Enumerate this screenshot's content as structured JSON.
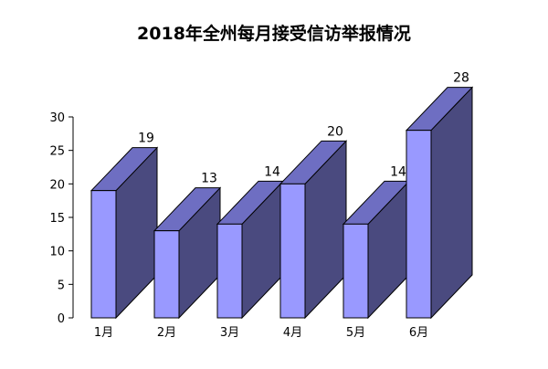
{
  "chart_data": {
    "type": "bar",
    "title": "2018年全州每月接受信访举报情况",
    "xlabel": "",
    "ylabel": "",
    "categories": [
      "1月",
      "2月",
      "3月",
      "4月",
      "5月",
      "6月"
    ],
    "values": [
      19,
      13,
      14,
      20,
      14,
      28
    ],
    "ylim": [
      0,
      30
    ],
    "yticks": [
      0,
      5,
      10,
      15,
      20,
      25,
      30
    ],
    "grid": false,
    "legend": "none",
    "style": "3d-column",
    "colors": {
      "front": "#9999ff",
      "top": "#6e6ec2",
      "side": "#4a4a7f",
      "stroke": "#000000"
    }
  }
}
